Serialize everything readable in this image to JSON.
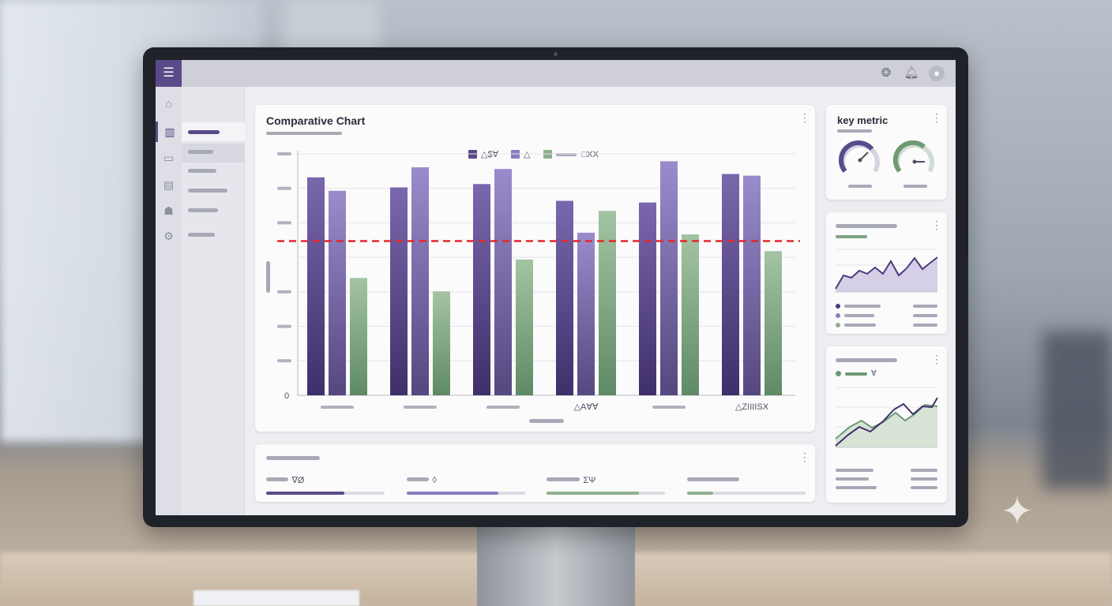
{
  "app": {
    "menu_icon": "menu-icon"
  },
  "topbar": {
    "icons": [
      "help-icon",
      "bell-icon",
      "user-avatar-icon"
    ]
  },
  "rail": {
    "icons": [
      "home-icon",
      "bar-chart-icon",
      "inbox-icon",
      "report-icon",
      "users-icon",
      "gear-icon"
    ]
  },
  "main_chart": {
    "title": "Comparative Chart",
    "legend": [
      {
        "label": "△$∀",
        "color": "#5b4a8a"
      },
      {
        "label": "△",
        "color": "#8a7bbf"
      },
      {
        "label": "□XX",
        "color": "#8fb08f"
      }
    ],
    "y_zero_label": "0",
    "x_labels": [
      "",
      "",
      "",
      "△A∀∀",
      "",
      "△ZIIIISX"
    ]
  },
  "chart_data": {
    "type": "bar",
    "categories": [
      "",
      "",
      "",
      "△A∀∀",
      "",
      "△ZIIIISX"
    ],
    "series": [
      {
        "name": "△$∀",
        "values": [
          6.5,
          6.2,
          6.3,
          5.8,
          5.75,
          6.6
        ]
      },
      {
        "name": "△",
        "values": [
          6.1,
          6.8,
          6.75,
          4.85,
          6.98,
          6.55
        ]
      },
      {
        "name": "□XX",
        "values": [
          3.5,
          3.1,
          4.05,
          5.5,
          4.8,
          4.3
        ]
      }
    ],
    "reference_line": 4.6,
    "ylim": [
      0,
      7.2
    ],
    "grid": true,
    "legend_position": "top-center"
  },
  "key_metric": {
    "title": "key metric"
  },
  "kpis": [
    {
      "label": "∇Ø",
      "progress": 0.66,
      "color": "#5b4a8a"
    },
    {
      "label": "◊",
      "progress": 0.77,
      "color": "#8a7bbf"
    },
    {
      "label": "ΣΨ",
      "progress": 0.78,
      "color": "#8fb08f"
    },
    {
      "label": "",
      "progress": 0.22,
      "color": "#8fb08f"
    }
  ],
  "mini_card2": {
    "legend_label": "∀"
  },
  "colors": {
    "accent": "#5b4a8a",
    "purple_light": "#8a7bbf",
    "green": "#8fb08f",
    "reference": "#e5262b"
  }
}
